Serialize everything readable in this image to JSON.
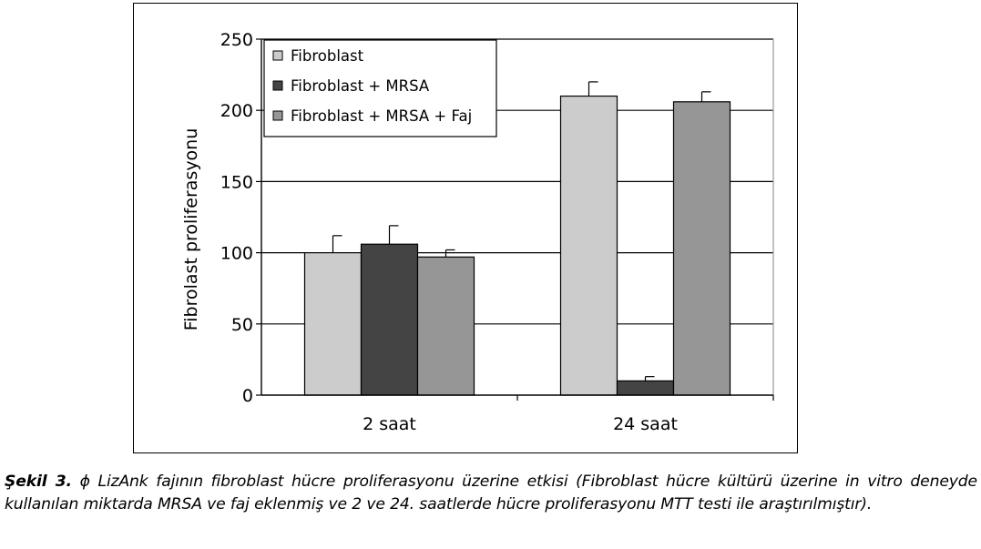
{
  "chart_data": {
    "type": "bar",
    "categories": [
      "2 saat",
      "24 saat"
    ],
    "series": [
      {
        "name": "Fibroblast",
        "color": "#cccccc",
        "values": [
          100,
          210
        ],
        "errors": [
          12,
          10
        ]
      },
      {
        "name": "Fibroblast + MRSA",
        "color": "#444444",
        "values": [
          106,
          10
        ],
        "errors": [
          13,
          3
        ]
      },
      {
        "name": "Fibroblast + MRSA + Faj",
        "color": "#969696",
        "values": [
          97,
          206
        ],
        "errors": [
          5,
          7
        ]
      }
    ],
    "ylabel": "Fibrolast proliferasyonu",
    "xlabel": "",
    "ylim": [
      0,
      250
    ],
    "yticks": [
      0,
      50,
      100,
      150,
      200,
      250
    ],
    "grid": true,
    "legend_position": "top-left"
  },
  "caption": {
    "label": "Şekil 3.",
    "symbol": "ϕ",
    "text": "LizAnk fajının fibroblast hücre proliferasyonu üzerine etkisi (Fibroblast hücre kültürü üzerine in vitro deneyde kullanılan miktarda MRSA ve faj eklenmiş ve 2 ve 24. saatlerde hücre proliferasyonu MTT testi ile araştırılmıştır)."
  }
}
